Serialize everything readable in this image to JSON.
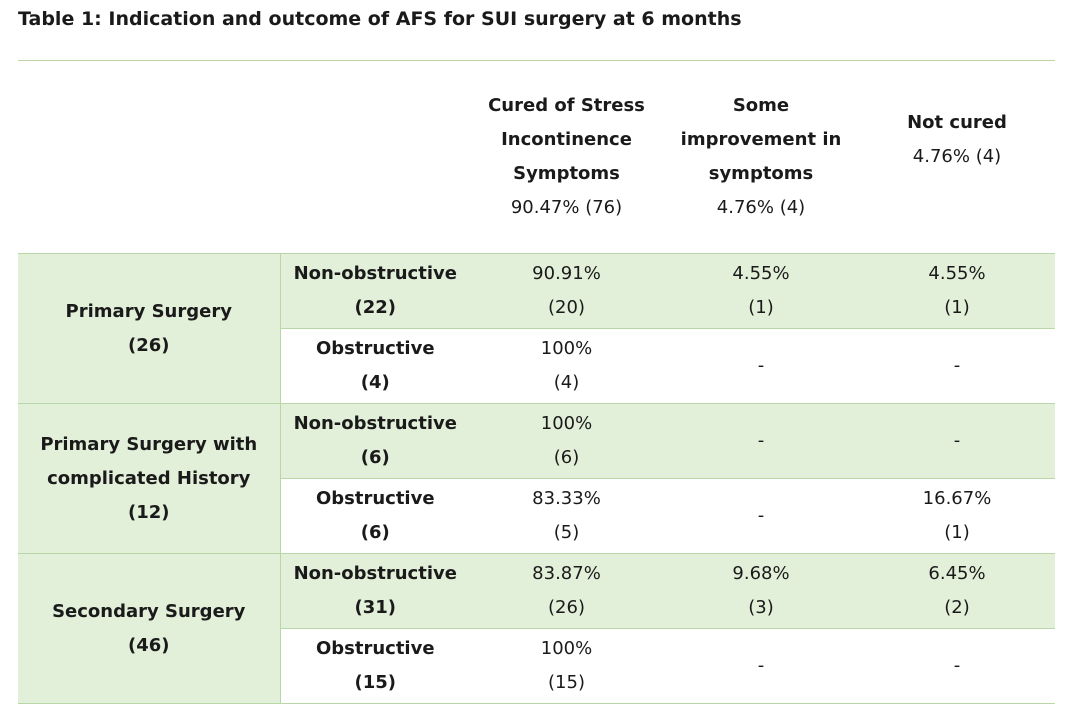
{
  "caption": "Table 1: Indication and outcome of AFS for SUI surgery at 6 months",
  "header": {
    "cured": [
      "Cured of Stress",
      "Incontinence",
      "Symptoms"
    ],
    "cured_total": "90.47% (76)",
    "some": [
      "Some",
      "improvement in",
      "symptoms"
    ],
    "some_total": "4.76% (4)",
    "notcured": [
      "Not cured"
    ],
    "notcured_total": "4.76% (4)"
  },
  "groups": [
    {
      "name": [
        "Primary Surgery",
        "(26)"
      ],
      "rows": [
        {
          "sub": [
            "Non-obstructive",
            "(22)"
          ],
          "cured": [
            "90.91%",
            "(20)"
          ],
          "some": [
            "4.55%",
            "(1)"
          ],
          "notcured": [
            "4.55%",
            "(1)"
          ]
        },
        {
          "sub": [
            "Obstructive",
            "(4)"
          ],
          "cured": [
            "100%",
            "(4)"
          ],
          "some": [
            "-"
          ],
          "notcured": [
            "-"
          ]
        }
      ]
    },
    {
      "name": [
        "Primary Surgery with",
        "complicated History",
        "(12)"
      ],
      "rows": [
        {
          "sub": [
            "Non-obstructive",
            "(6)"
          ],
          "cured": [
            "100%",
            "(6)"
          ],
          "some": [
            "-"
          ],
          "notcured": [
            "-"
          ]
        },
        {
          "sub": [
            "Obstructive",
            "(6)"
          ],
          "cured": [
            "83.33%",
            "(5)"
          ],
          "some": [
            "-"
          ],
          "notcured": [
            "16.67%",
            "(1)"
          ]
        }
      ]
    },
    {
      "name": [
        "Secondary Surgery",
        "(46)"
      ],
      "rows": [
        {
          "sub": [
            "Non-obstructive",
            "(31)"
          ],
          "cured": [
            "83.87%",
            "(26)"
          ],
          "some": [
            "9.68%",
            "(3)"
          ],
          "notcured": [
            "6.45%",
            "(2)"
          ]
        },
        {
          "sub": [
            "Obstructive",
            "(15)"
          ],
          "cured": [
            "100%",
            "(15)"
          ],
          "some": [
            "-"
          ],
          "notcured": [
            "-"
          ]
        }
      ]
    }
  ]
}
